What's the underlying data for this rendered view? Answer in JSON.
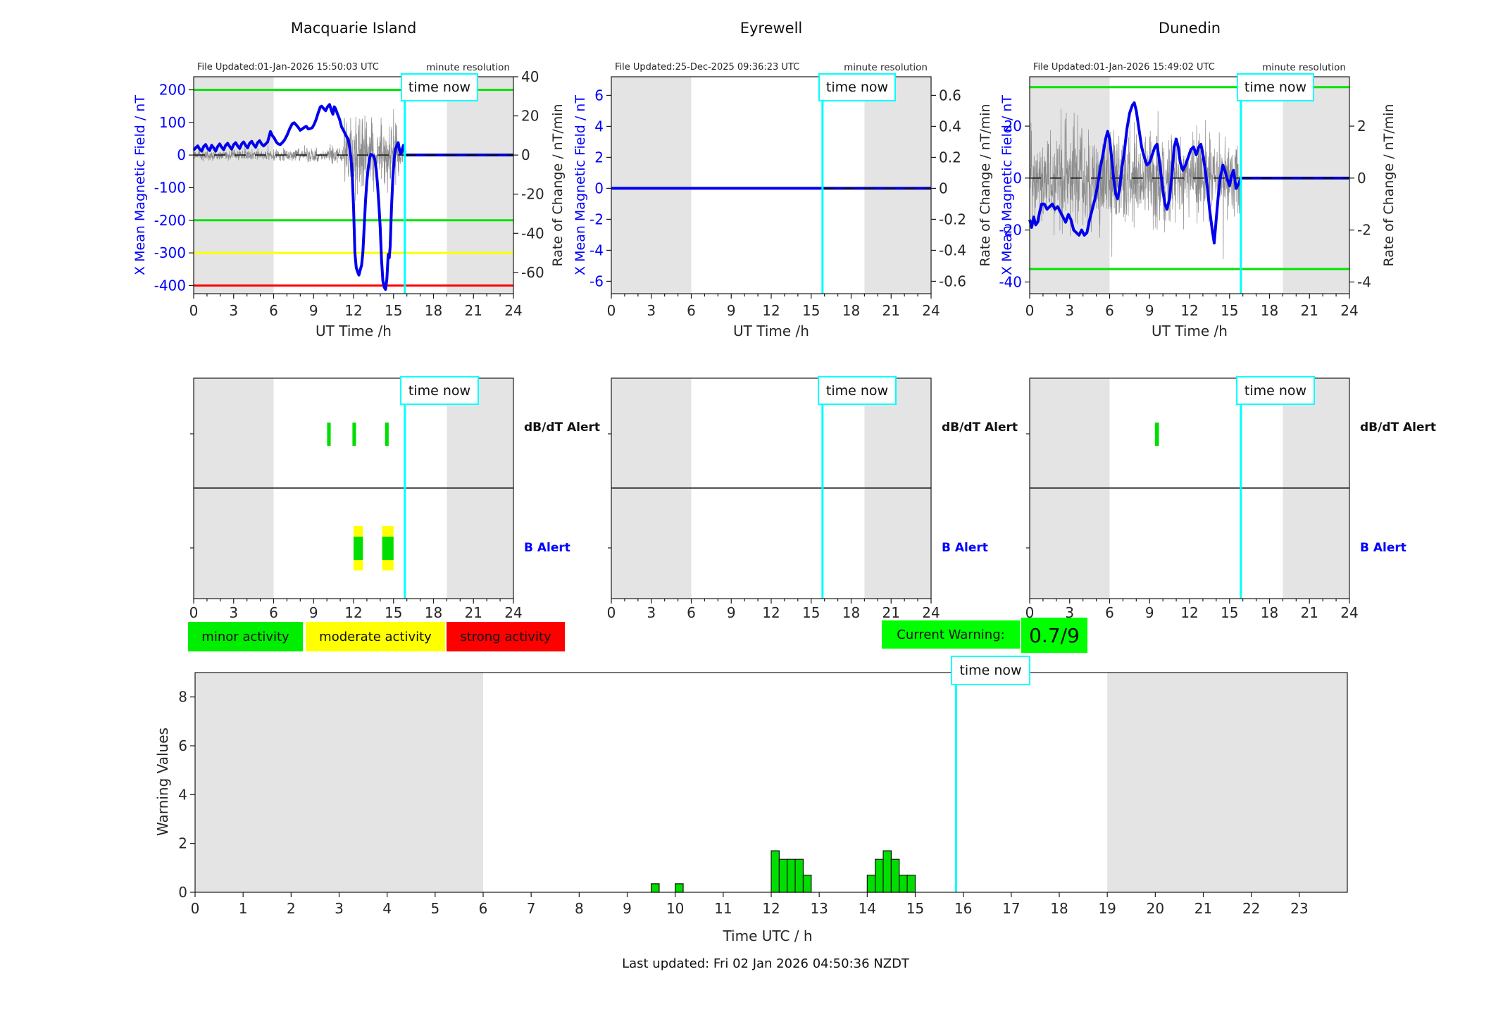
{
  "time_now": {
    "label": "time now",
    "hour": 15.85
  },
  "shaded_hours": [
    [
      0,
      6
    ],
    [
      19,
      24
    ]
  ],
  "alert_labels": {
    "db_dt": "dB/dT Alert",
    "b": "B Alert"
  },
  "legend": [
    {
      "label": "minor activity",
      "color": "#00ee00"
    },
    {
      "label": "moderate activity",
      "color": "#ffff00"
    },
    {
      "label": "strong activity",
      "color": "#ff0000"
    }
  ],
  "current_warning": {
    "label": "Current Warning:",
    "value": "0.7/9",
    "color": "#00ff00"
  },
  "footer": {
    "last_updated": "Last updated: Fri 02 Jan 2026 04:50:36 NZDT"
  },
  "colors": {
    "trace_blue": "#0000ee",
    "flat_blue": "#0000cc",
    "noise_grey": "#8a8a8a",
    "band_grey": "#e4e4e4",
    "line_green": "#00e400",
    "line_yellow": "#ffff00",
    "line_red": "#ff0000",
    "axis_dark": "#1a1a1a",
    "label_blue": "#0000ff",
    "cyan": "#00ffff",
    "bar_green": "#00dd00",
    "dash_black": "#111111"
  },
  "chart_data": [
    {
      "type": "line",
      "panel": "magnetometer",
      "title": "Macquarie Island",
      "file_updated": "File Updated:01-Jan-2026 15:50:03 UTC",
      "resolution_note": "minute resolution",
      "x": {
        "label": "UT Time /h",
        "ticks": [
          0,
          3,
          6,
          9,
          12,
          15,
          18,
          21,
          24
        ],
        "range": [
          0,
          24
        ]
      },
      "y_left": {
        "label": "X Mean Magnetic Field / nT",
        "ticks": [
          200,
          100,
          0,
          -100,
          -200,
          -300,
          -400
        ],
        "range": [
          -425,
          240
        ]
      },
      "y_right": {
        "label": "Rate of Change / nT/min",
        "ticks": [
          40,
          20,
          0,
          -20,
          -40,
          -60
        ],
        "left_units_per_right_unit": 6
      },
      "threshold_lines": [
        {
          "value": 200,
          "color": "#00e400"
        },
        {
          "value": -200,
          "color": "#00e400"
        },
        {
          "value": -300,
          "color": "#ffff00"
        },
        {
          "value": -400,
          "color": "#ff0000"
        }
      ],
      "series_mean_field": [
        [
          0,
          15
        ],
        [
          0.15,
          22
        ],
        [
          0.3,
          28
        ],
        [
          0.45,
          18
        ],
        [
          0.6,
          12
        ],
        [
          0.75,
          26
        ],
        [
          0.9,
          32
        ],
        [
          1.05,
          20
        ],
        [
          1.2,
          14
        ],
        [
          1.35,
          30
        ],
        [
          1.5,
          22
        ],
        [
          1.65,
          12
        ],
        [
          1.8,
          26
        ],
        [
          1.95,
          34
        ],
        [
          2.1,
          24
        ],
        [
          2.25,
          16
        ],
        [
          2.4,
          30
        ],
        [
          2.55,
          36
        ],
        [
          2.7,
          26
        ],
        [
          2.85,
          18
        ],
        [
          3,
          32
        ],
        [
          3.15,
          38
        ],
        [
          3.3,
          28
        ],
        [
          3.45,
          20
        ],
        [
          3.6,
          34
        ],
        [
          3.75,
          40
        ],
        [
          3.9,
          30
        ],
        [
          4.05,
          22
        ],
        [
          4.2,
          36
        ],
        [
          4.35,
          42
        ],
        [
          4.5,
          32
        ],
        [
          4.65,
          24
        ],
        [
          4.8,
          38
        ],
        [
          4.95,
          44
        ],
        [
          5.1,
          34
        ],
        [
          5.25,
          28
        ],
        [
          5.4,
          34
        ],
        [
          5.55,
          40
        ],
        [
          5.76,
          72
        ],
        [
          5.9,
          60
        ],
        [
          6.05,
          52
        ],
        [
          6.2,
          40
        ],
        [
          6.35,
          34
        ],
        [
          6.5,
          32
        ],
        [
          6.65,
          38
        ],
        [
          6.8,
          45
        ],
        [
          7,
          60
        ],
        [
          7.2,
          80
        ],
        [
          7.4,
          96
        ],
        [
          7.55,
          99
        ],
        [
          7.7,
          92
        ],
        [
          7.85,
          85
        ],
        [
          8,
          76
        ],
        [
          8.15,
          80
        ],
        [
          8.3,
          85
        ],
        [
          8.45,
          88
        ],
        [
          8.6,
          80
        ],
        [
          8.75,
          81
        ],
        [
          8.9,
          84
        ],
        [
          9.05,
          95
        ],
        [
          9.2,
          110
        ],
        [
          9.35,
          130
        ],
        [
          9.5,
          147
        ],
        [
          9.6,
          150
        ],
        [
          9.75,
          143
        ],
        [
          9.9,
          136
        ],
        [
          10.05,
          148
        ],
        [
          10.2,
          155
        ],
        [
          10.35,
          135
        ],
        [
          10.45,
          125
        ],
        [
          10.55,
          148
        ],
        [
          10.65,
          142
        ],
        [
          10.8,
          125
        ],
        [
          10.95,
          110
        ],
        [
          11.1,
          86
        ],
        [
          11.25,
          75
        ],
        [
          11.4,
          63
        ],
        [
          11.5,
          55
        ],
        [
          11.6,
          48
        ],
        [
          11.7,
          25
        ],
        [
          11.8,
          -5
        ],
        [
          11.9,
          -60
        ],
        [
          12,
          -160
        ],
        [
          12.1,
          -300
        ],
        [
          12.2,
          -345
        ],
        [
          12.3,
          -358
        ],
        [
          12.4,
          -368
        ],
        [
          12.5,
          -352
        ],
        [
          12.6,
          -338
        ],
        [
          12.7,
          -300
        ],
        [
          12.8,
          -220
        ],
        [
          12.9,
          -140
        ],
        [
          13,
          -80
        ],
        [
          13.1,
          -40
        ],
        [
          13.2,
          -10
        ],
        [
          13.3,
          2
        ],
        [
          13.4,
          0
        ],
        [
          13.5,
          -3
        ],
        [
          13.6,
          -15
        ],
        [
          13.7,
          -45
        ],
        [
          13.8,
          -90
        ],
        [
          13.9,
          -150
        ],
        [
          14,
          -220
        ],
        [
          14.1,
          -320
        ],
        [
          14.2,
          -385
        ],
        [
          14.3,
          -405
        ],
        [
          14.4,
          -412
        ],
        [
          14.5,
          -380
        ],
        [
          14.6,
          -305
        ],
        [
          14.68,
          -315
        ],
        [
          14.75,
          -280
        ],
        [
          14.85,
          -160
        ],
        [
          14.95,
          -70
        ],
        [
          15.05,
          -10
        ],
        [
          15.15,
          18
        ],
        [
          15.25,
          30
        ],
        [
          15.35,
          38
        ],
        [
          15.45,
          15
        ],
        [
          15.55,
          2
        ],
        [
          15.65,
          18
        ],
        [
          15.75,
          30
        ],
        [
          15.85,
          8
        ]
      ],
      "flat_after_time_now": 0,
      "noise": {
        "segments": [
          [
            0,
            6,
            13
          ],
          [
            6,
            8.3,
            16
          ],
          [
            8.3,
            9.4,
            22
          ],
          [
            9.4,
            10.2,
            12
          ],
          [
            10.2,
            11.3,
            26
          ],
          [
            11.3,
            13.6,
            95
          ],
          [
            13.6,
            14.05,
            40
          ],
          [
            14.05,
            15.45,
            88
          ],
          [
            15.45,
            15.85,
            25
          ]
        ],
        "spike_prob": 0.012,
        "spike_gain": 2.4,
        "clamp": [
          -285,
          233
        ],
        "seed": 11
      },
      "alerts": {
        "db_dt_hours": [
          10.15,
          12.05,
          14.5
        ],
        "db_dt_width_h": 0.27,
        "b_intervals": [
          [
            12.0,
            12.7
          ],
          [
            14.15,
            15.0
          ]
        ]
      }
    },
    {
      "type": "line",
      "panel": "magnetometer",
      "title": "Eyrewell",
      "file_updated": "File Updated:25-Dec-2025 09:36:23 UTC",
      "resolution_note": "minute resolution",
      "x": {
        "label": "UT Time /h",
        "ticks": [
          0,
          3,
          6,
          9,
          12,
          15,
          18,
          21,
          24
        ],
        "range": [
          0,
          24
        ]
      },
      "y_left": {
        "label": "X Mean Magnetic Field / nT",
        "ticks": [
          6,
          4,
          2,
          0,
          -2,
          -4,
          -6
        ],
        "range": [
          -6.8,
          7.2
        ]
      },
      "y_right": {
        "label": "Rate of Change / nT/min",
        "ticks": [
          0.6,
          0.4,
          0.2,
          0,
          -0.2,
          -0.4,
          -0.6
        ],
        "left_units_per_right_unit": 10
      },
      "threshold_lines": [],
      "series_mean_field": [
        [
          0,
          0
        ],
        [
          15.85,
          0
        ]
      ],
      "flat_after_time_now": 0,
      "noise": null,
      "alerts": {
        "db_dt_hours": [],
        "db_dt_width_h": 0.27,
        "b_intervals": []
      }
    },
    {
      "type": "line",
      "panel": "magnetometer",
      "title": "Dunedin",
      "file_updated": "File Updated:01-Jan-2026 15:49:02 UTC",
      "resolution_note": "minute resolution",
      "x": {
        "label": "UT Time /h",
        "ticks": [
          0,
          3,
          6,
          9,
          12,
          15,
          18,
          21,
          24
        ],
        "range": [
          0,
          24
        ]
      },
      "y_left": {
        "label": "X Mean Magnetic Field / nT",
        "ticks": [
          20,
          0,
          -20,
          -40
        ],
        "range": [
          -44.5,
          39
        ]
      },
      "y_right": {
        "label": "Rate of Change / nT/min",
        "ticks": [
          2,
          0,
          -2,
          -4
        ],
        "left_units_per_right_unit": 10
      },
      "threshold_lines": [
        {
          "value": 35,
          "color": "#00e400"
        },
        {
          "value": -35,
          "color": "#00e400"
        }
      ],
      "series_mean_field": [
        [
          0,
          -16
        ],
        [
          0.15,
          -19
        ],
        [
          0.3,
          -15
        ],
        [
          0.45,
          -18
        ],
        [
          0.6,
          -17
        ],
        [
          0.75,
          -13
        ],
        [
          0.9,
          -10
        ],
        [
          1.1,
          -10
        ],
        [
          1.3,
          -12
        ],
        [
          1.5,
          -11
        ],
        [
          1.7,
          -10
        ],
        [
          1.9,
          -12
        ],
        [
          2.1,
          -11
        ],
        [
          2.3,
          -13
        ],
        [
          2.5,
          -15
        ],
        [
          2.7,
          -17
        ],
        [
          2.9,
          -14
        ],
        [
          3.1,
          -16
        ],
        [
          3.3,
          -20
        ],
        [
          3.5,
          -21
        ],
        [
          3.7,
          -22
        ],
        [
          3.9,
          -20
        ],
        [
          4.1,
          -22
        ],
        [
          4.3,
          -21
        ],
        [
          4.5,
          -16
        ],
        [
          4.7,
          -12
        ],
        [
          4.9,
          -8
        ],
        [
          5.1,
          -3
        ],
        [
          5.3,
          4
        ],
        [
          5.5,
          9
        ],
        [
          5.7,
          15
        ],
        [
          5.85,
          18
        ],
        [
          6,
          15
        ],
        [
          6.15,
          8
        ],
        [
          6.3,
          0
        ],
        [
          6.45,
          -6
        ],
        [
          6.6,
          -8
        ],
        [
          6.75,
          -4
        ],
        [
          6.9,
          3
        ],
        [
          7.1,
          10
        ],
        [
          7.3,
          19
        ],
        [
          7.5,
          25
        ],
        [
          7.7,
          28
        ],
        [
          7.85,
          29
        ],
        [
          8,
          26
        ],
        [
          8.2,
          19
        ],
        [
          8.4,
          12
        ],
        [
          8.6,
          8
        ],
        [
          8.8,
          5
        ],
        [
          9,
          6
        ],
        [
          9.2,
          9
        ],
        [
          9.4,
          12
        ],
        [
          9.55,
          13
        ],
        [
          9.7,
          8
        ],
        [
          9.85,
          2
        ],
        [
          10,
          -5
        ],
        [
          10.15,
          -10
        ],
        [
          10.3,
          -12
        ],
        [
          10.5,
          -8
        ],
        [
          10.7,
          3
        ],
        [
          10.85,
          12
        ],
        [
          11,
          15
        ],
        [
          11.15,
          12
        ],
        [
          11.3,
          6
        ],
        [
          11.5,
          3
        ],
        [
          11.7,
          5
        ],
        [
          11.9,
          8
        ],
        [
          12.1,
          11
        ],
        [
          12.3,
          12
        ],
        [
          12.5,
          9
        ],
        [
          12.7,
          12
        ],
        [
          12.85,
          13
        ],
        [
          13,
          9
        ],
        [
          13.15,
          4
        ],
        [
          13.3,
          -2
        ],
        [
          13.5,
          -12
        ],
        [
          13.7,
          -20
        ],
        [
          13.85,
          -25
        ],
        [
          14,
          -16
        ],
        [
          14.15,
          -7
        ],
        [
          14.3,
          0
        ],
        [
          14.5,
          5
        ],
        [
          14.65,
          3
        ],
        [
          14.8,
          0
        ],
        [
          15,
          -3
        ],
        [
          15.15,
          1
        ],
        [
          15.3,
          3
        ],
        [
          15.5,
          -4
        ],
        [
          15.7,
          -2
        ],
        [
          15.85,
          0
        ]
      ],
      "flat_after_time_now": 0,
      "noise": {
        "segments": [
          [
            0,
            2.2,
            14
          ],
          [
            2.2,
            4.8,
            16
          ],
          [
            4.8,
            6.6,
            15
          ],
          [
            6.6,
            9,
            13
          ],
          [
            9,
            10.6,
            16
          ],
          [
            10.6,
            12.3,
            12
          ],
          [
            12.3,
            13.6,
            14
          ],
          [
            13.6,
            15.85,
            12
          ]
        ],
        "spike_prob": 0.012,
        "spike_gain": 2.2,
        "clamp": [
          -32,
          30
        ],
        "seed": 23
      },
      "alerts": {
        "db_dt_hours": [
          9.55
        ],
        "db_dt_width_h": 0.3,
        "b_intervals": []
      }
    },
    {
      "type": "bar",
      "panel": "warning",
      "ylabel": "Warning Values",
      "xlabel": "Time UTC / h",
      "yticks": [
        0,
        2,
        4,
        6,
        8
      ],
      "y_range": [
        0,
        9
      ],
      "xticks": [
        0,
        1,
        2,
        3,
        4,
        5,
        6,
        7,
        8,
        9,
        10,
        11,
        12,
        13,
        14,
        15,
        16,
        17,
        18,
        19,
        20,
        21,
        22,
        23
      ],
      "bar_width_h": 0.1667,
      "bars": [
        [
          9.5,
          0.35
        ],
        [
          10.0,
          0.35
        ],
        [
          12.0,
          1.7
        ],
        [
          12.167,
          1.35
        ],
        [
          12.333,
          1.35
        ],
        [
          12.5,
          1.35
        ],
        [
          12.667,
          0.7
        ],
        [
          14.0,
          0.7
        ],
        [
          14.167,
          1.35
        ],
        [
          14.333,
          1.7
        ],
        [
          14.5,
          1.35
        ],
        [
          14.667,
          0.7
        ],
        [
          14.833,
          0.7
        ]
      ]
    }
  ]
}
